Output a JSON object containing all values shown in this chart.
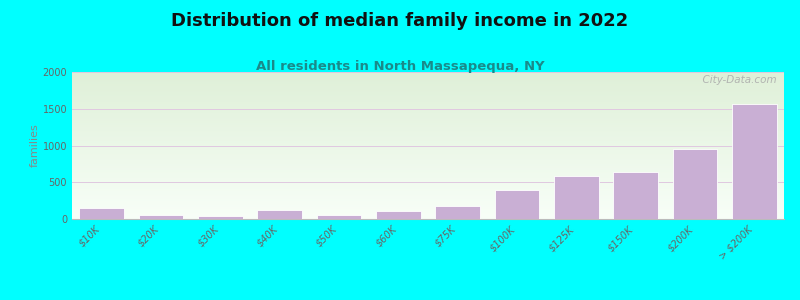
{
  "title": "Distribution of median family income in 2022",
  "subtitle": "All residents in North Massapequa, NY",
  "ylabel": "families",
  "categories": [
    "$10K",
    "$20K",
    "$30K",
    "$40K",
    "$50K",
    "$60K",
    "$75K",
    "$100K",
    "$125K",
    "$150K",
    "$200K",
    "> $200K"
  ],
  "values": [
    155,
    50,
    35,
    120,
    50,
    110,
    175,
    390,
    580,
    640,
    950,
    1570
  ],
  "bar_color": "#c9afd4",
  "bar_edgecolor": "#ffffff",
  "background_color": "#00ffff",
  "plot_bg_gradient_top": "#dff0d8",
  "plot_bg_gradient_bottom": "#f8fff8",
  "grid_color": "#e0c8e0",
  "ylim": [
    0,
    2000
  ],
  "yticks": [
    0,
    500,
    1000,
    1500,
    2000
  ],
  "title_fontsize": 13,
  "subtitle_fontsize": 9.5,
  "ylabel_fontsize": 8,
  "tick_fontsize": 7,
  "watermark": "  City-Data.com"
}
